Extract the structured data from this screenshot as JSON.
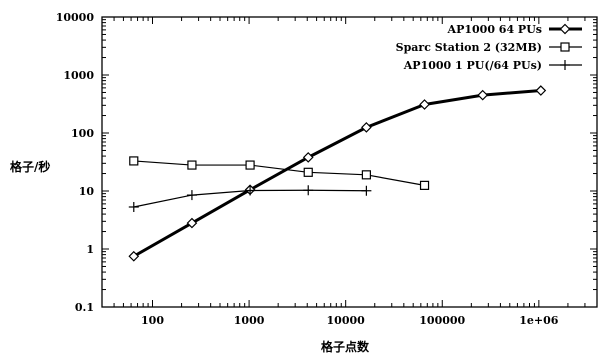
{
  "chart_data": {
    "type": "line",
    "xlabel": "格子点数",
    "ylabel": "格子/秒",
    "xscale": "log",
    "yscale": "log",
    "xlim": [
      30,
      4000000
    ],
    "ylim": [
      0.1,
      10000
    ],
    "xticks": [
      {
        "value": 100,
        "label": "100"
      },
      {
        "value": 1000,
        "label": "1000"
      },
      {
        "value": 10000,
        "label": "10000"
      },
      {
        "value": 100000,
        "label": "100000"
      },
      {
        "value": 1000000,
        "label": "1e+06"
      }
    ],
    "yticks": [
      {
        "value": 0.1,
        "label": "0.1"
      },
      {
        "value": 1,
        "label": "1"
      },
      {
        "value": 10,
        "label": "10"
      },
      {
        "value": 100,
        "label": "100"
      },
      {
        "value": 1000,
        "label": "1000"
      },
      {
        "value": 10000,
        "label": "10000"
      }
    ],
    "legend_position": "top-right",
    "grid": false,
    "series": [
      {
        "name": "AP1000 64 PUs",
        "marker": "diamond",
        "line": "thick",
        "x": [
          64,
          256,
          1024,
          4096,
          16384,
          65536,
          262144,
          1048576
        ],
        "y": [
          0.75,
          2.8,
          10.5,
          38,
          125,
          310,
          450,
          540
        ]
      },
      {
        "name": "Sparc Station 2 (32MB)",
        "marker": "square",
        "line": "thin",
        "x": [
          64,
          256,
          1024,
          4096,
          16384,
          65536
        ],
        "y": [
          33,
          28,
          28,
          21,
          19,
          12.5
        ]
      },
      {
        "name": "AP1000 1 PU(/64 PUs)",
        "marker": "plus",
        "line": "thin",
        "x": [
          64,
          256,
          1024,
          4096,
          16384
        ],
        "y": [
          5.3,
          8.5,
          10.2,
          10.3,
          10.1
        ]
      }
    ]
  }
}
